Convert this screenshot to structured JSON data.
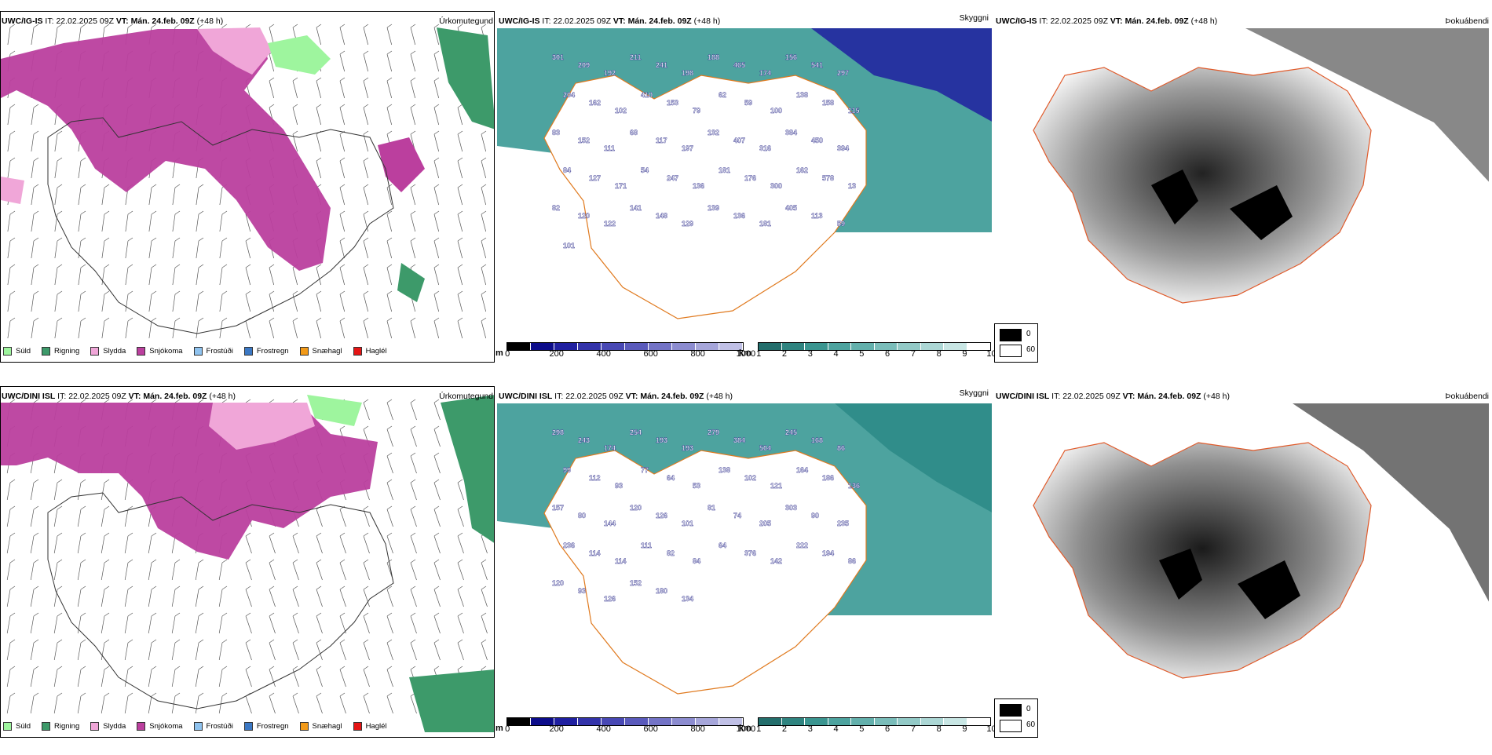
{
  "rows": [
    {
      "model": "UWC/IG-IS",
      "it_label": "IT:",
      "it_value": "22.02.2025 09Z",
      "vt_label": "VT:",
      "vt_value": "Mán. 24.feb. 09Z",
      "lead": "(+48 h)"
    },
    {
      "model": "UWC/DINI ISL",
      "it_label": "IT:",
      "it_value": "22.02.2025 09Z",
      "vt_label": "VT:",
      "vt_value": "Mán. 24.feb. 09Z",
      "lead": "(+48 h)"
    }
  ],
  "panels": {
    "precip": "Úrkomutegund",
    "cloud": "Skyggni",
    "fog": "Þokuábendi"
  },
  "precip_legend": [
    {
      "label": "Súld",
      "color": "#9ef59e"
    },
    {
      "label": "Rigning",
      "color": "#3d9a6a"
    },
    {
      "label": "Slydda",
      "color": "#f0a6d8"
    },
    {
      "label": "Snjókoma",
      "color": "#bb3f9e"
    },
    {
      "label": "Frostúði",
      "color": "#8fc3ef"
    },
    {
      "label": "Frostregn",
      "color": "#3b78c4"
    },
    {
      "label": "Snæhagl",
      "color": "#f29a18"
    },
    {
      "label": "Haglél",
      "color": "#e51515"
    }
  ],
  "ceiling_bar": {
    "unit": "m",
    "ticks": [
      "0",
      "200",
      "400",
      "600",
      "800",
      "1000"
    ],
    "colors": [
      "#000000",
      "#0c0c8a",
      "#1f1fa0",
      "#3333aa",
      "#4848b4",
      "#5a5abc",
      "#7373c6",
      "#8c8cd0",
      "#a6a6da",
      "#c0c0e6"
    ]
  },
  "visibility_bar": {
    "unit": "km",
    "ticks": [
      "1",
      "2",
      "3",
      "4",
      "5",
      "6",
      "7",
      "8",
      "9",
      "10"
    ],
    "colors": [
      "#236e6c",
      "#2f8480",
      "#3a9590",
      "#4da39f",
      "#63b0ac",
      "#7abdba",
      "#93cac7",
      "#acd7d5",
      "#c8e6e4",
      "#ffffff"
    ]
  },
  "fog_legend": {
    "low": "0",
    "high": "60"
  },
  "ceiling_labels_top": [
    "301",
    "209",
    "192",
    "211",
    "241",
    "198",
    "188",
    "465",
    "174",
    "156",
    "541",
    "297",
    "204",
    "162",
    "102",
    "410",
    "153",
    "79",
    "62",
    "59",
    "100",
    "138",
    "158",
    "115",
    "83",
    "152",
    "111",
    "68",
    "117",
    "197",
    "132",
    "407",
    "316",
    "384",
    "450",
    "394",
    "84",
    "127",
    "171",
    "54",
    "247",
    "136",
    "181",
    "176",
    "300",
    "162",
    "578",
    "13",
    "82",
    "120",
    "122",
    "141",
    "148",
    "129",
    "139",
    "136",
    "181",
    "405",
    "113",
    "59",
    "101"
  ],
  "ceiling_labels_bottom": [
    "298",
    "243",
    "174",
    "254",
    "193",
    "193",
    "279",
    "384",
    "504",
    "245",
    "168",
    "86",
    "99",
    "112",
    "93",
    "77",
    "64",
    "53",
    "138",
    "102",
    "121",
    "164",
    "186",
    "136",
    "157",
    "80",
    "144",
    "120",
    "126",
    "101",
    "81",
    "74",
    "205",
    "303",
    "90",
    "235",
    "236",
    "114",
    "114",
    "111",
    "82",
    "84",
    "64",
    "376",
    "142",
    "222",
    "194",
    "86",
    "120",
    "93",
    "126",
    "152",
    "180",
    "134"
  ]
}
